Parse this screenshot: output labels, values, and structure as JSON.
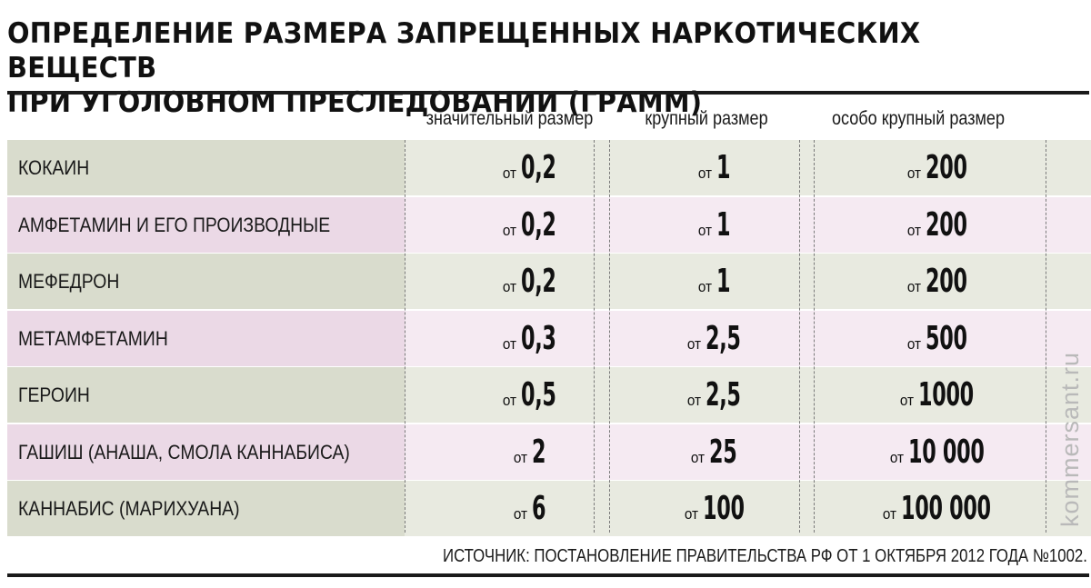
{
  "title_line1": "ОПРЕДЕЛЕНИЕ РАЗМЕРА ЗАПРЕЩЕННЫХ НАРКОТИЧЕСКИХ ВЕЩЕСТВ",
  "title_line2": "ПРИ УГОЛОВНОМ ПРЕСЛЕДОВАНИИ (ГРАММ)",
  "prefix": "от",
  "source": "ИСТОЧНИК: ПОСТАНОВЛЕНИЕ ПРАВИТЕЛЬСТВА РФ ОТ 1 ОКТЯБРЯ 2012 ГОДА №1002.",
  "watermark": "kommersant.ru",
  "colors": {
    "row_green_label": "#d9dccd",
    "row_green_values": "#e8eae0",
    "row_pink_label": "#ebd9e6",
    "row_pink_values": "#f5eaf2"
  },
  "chart_data": {
    "type": "table",
    "columns": [
      "значительный размер",
      "крупный размер",
      "особо крупный размер"
    ],
    "rows": [
      {
        "name": "КОКАИН",
        "values": [
          "0,2",
          "1",
          "200"
        ]
      },
      {
        "name": "АМФЕТАМИН И ЕГО ПРОИЗВОДНЫЕ",
        "values": [
          "0,2",
          "1",
          "200"
        ]
      },
      {
        "name": "МЕФЕДРОН",
        "values": [
          "0,2",
          "1",
          "200"
        ]
      },
      {
        "name": "МЕТАМФЕТАМИН",
        "values": [
          "0,3",
          "2,5",
          "500"
        ]
      },
      {
        "name": "ГЕРОИН",
        "values": [
          "0,5",
          "2,5",
          "1000"
        ]
      },
      {
        "name": "ГАШИШ (АНАША, СМОЛА КАННАБИСА)",
        "values": [
          "2",
          "25",
          "10 000"
        ]
      },
      {
        "name": "КАННАБИС (МАРИХУАНА)",
        "values": [
          "6",
          "100",
          "100 000"
        ]
      }
    ]
  }
}
